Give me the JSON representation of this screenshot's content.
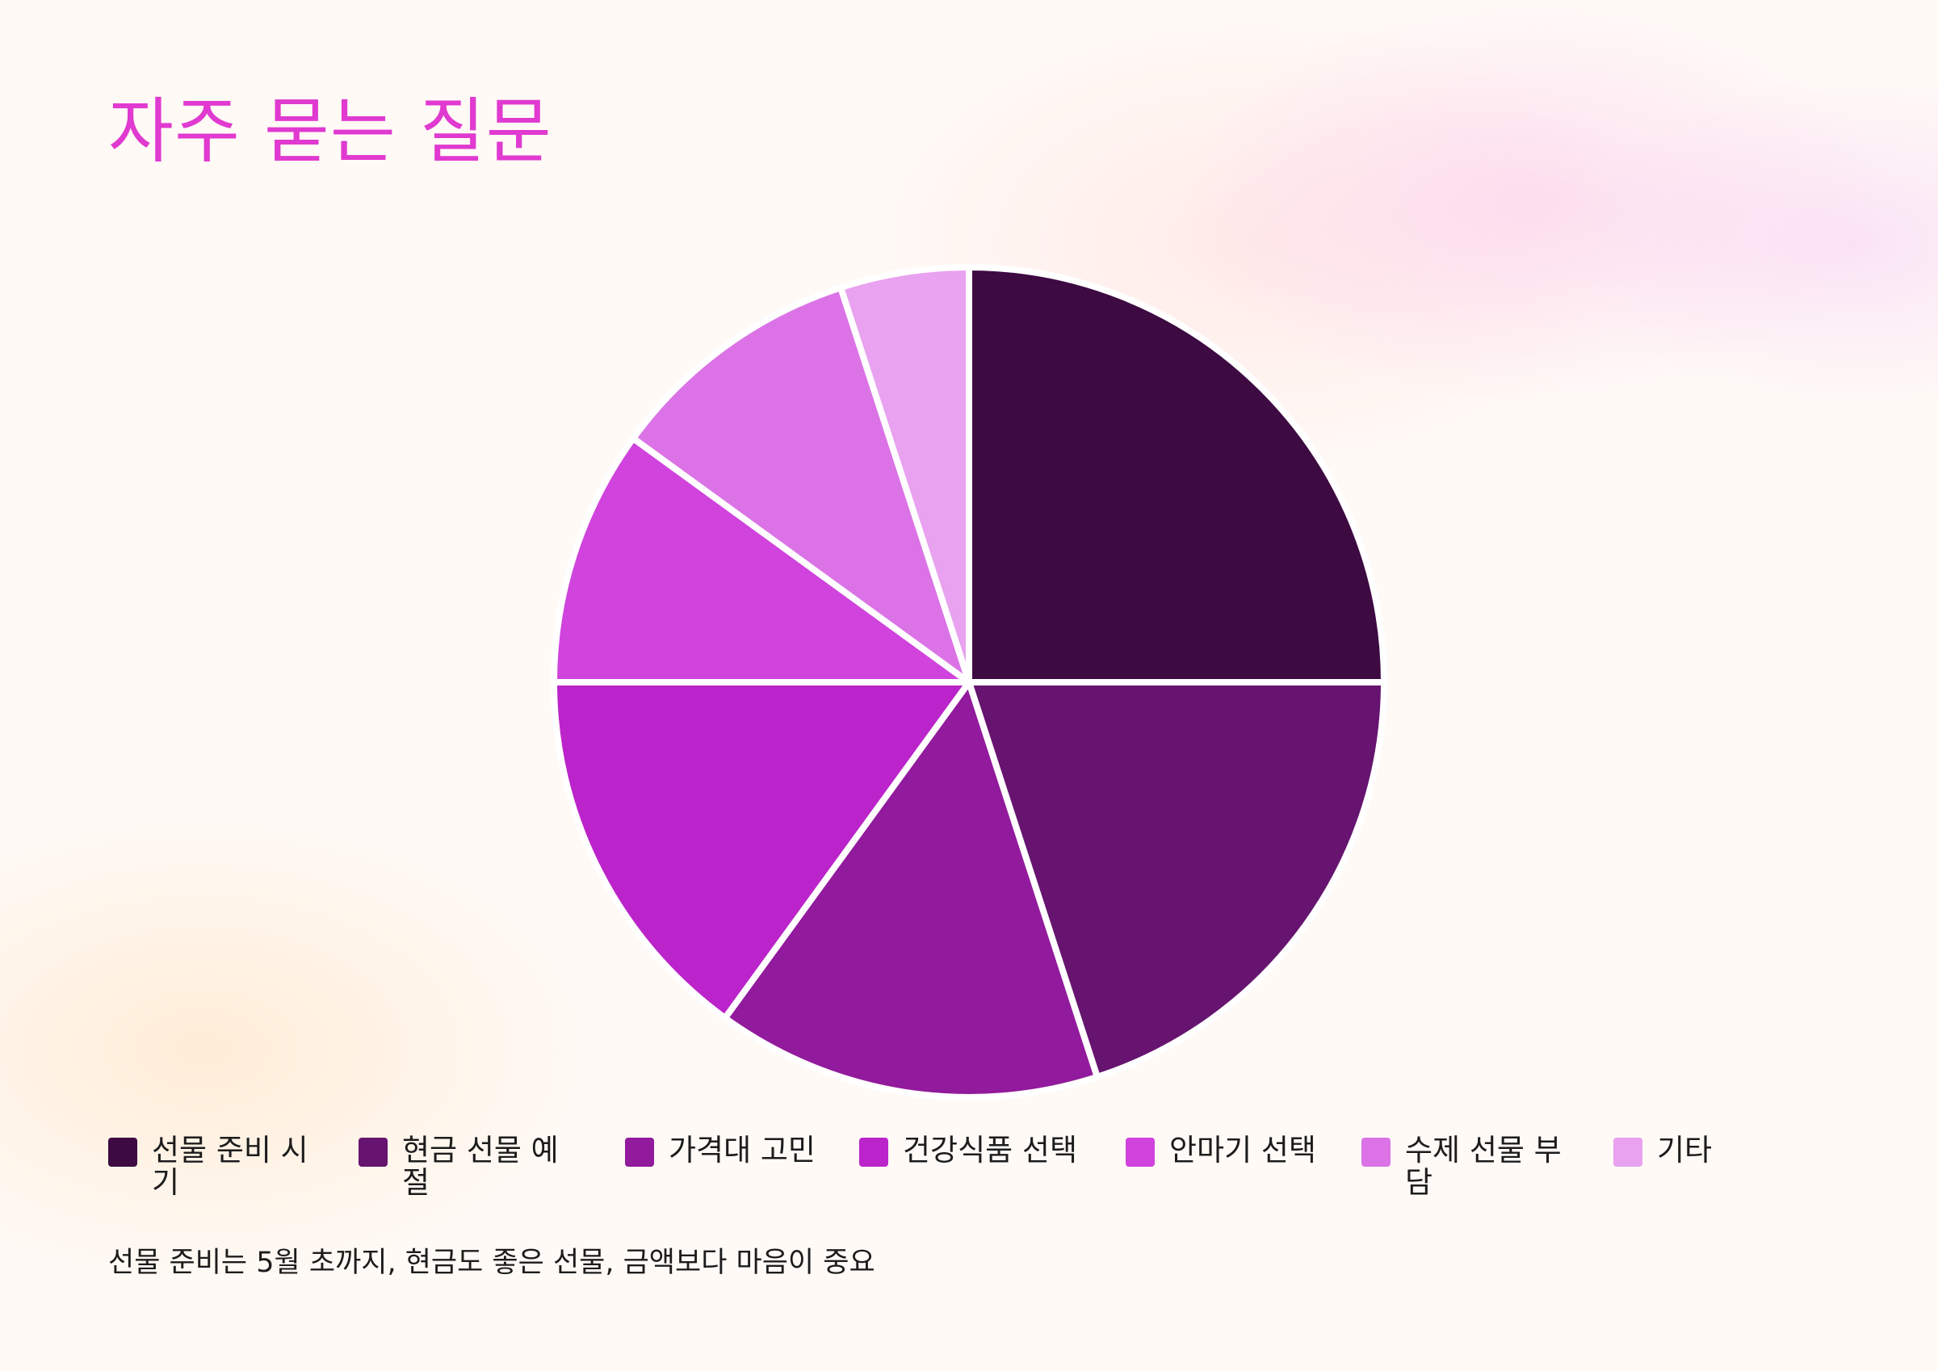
{
  "title": "자주 묻는 질문",
  "footnote": "선물 준비는 5월 초까지, 현금도 좋은 선물, 금액보다 마음이 중요",
  "chart_data": {
    "type": "pie",
    "title": "자주 묻는 질문",
    "categories": [
      "선물 준비 시기",
      "현금 선물 예절",
      "가격대 고민",
      "건강식품 선택",
      "안마기 선택",
      "수제 선물 부담",
      "기타"
    ],
    "values": [
      25,
      20,
      15,
      15,
      10,
      10,
      5
    ],
    "colors": [
      "#3d0a42",
      "#66146f",
      "#921a9c",
      "#bb24ca",
      "#d043dc",
      "#db73e6",
      "#e8a2ef"
    ],
    "start_angle": "12 o'clock",
    "direction": "clockwise",
    "legend_position": "bottom"
  }
}
